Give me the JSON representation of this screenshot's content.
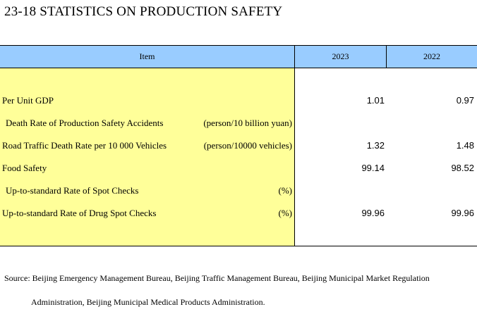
{
  "title": "23-18  STATISTICS ON PRODUCTION SAFETY",
  "table": {
    "headers": {
      "item": "Item",
      "year1": "2023",
      "year2": "2022"
    },
    "rows": [
      {
        "label": "Per Unit GDP",
        "unit": "",
        "v2023": "1.01",
        "v2022": "0.97"
      },
      {
        "label": "  Death Rate of Production Safety Accidents",
        "unit": "(person/10 billion yuan)",
        "v2023": "",
        "v2022": ""
      },
      {
        "label": "Road Traffic Death Rate per 10 000 Vehicles",
        "unit": "(person/10000 vehicles)",
        "v2023": "1.32",
        "v2022": "1.48"
      },
      {
        "label": "Food Safety",
        "unit": "",
        "v2023": "99.14",
        "v2022": "98.52"
      },
      {
        "label": "  Up-to-standard Rate of Spot Checks",
        "unit": "(%)",
        "v2023": "",
        "v2022": ""
      },
      {
        "label": "Up-to-standard Rate of Drug Spot Checks",
        "unit": "(%)",
        "v2023": "99.96",
        "v2022": "99.96"
      }
    ]
  },
  "source": {
    "line1": "Source:  Beijing Emergency Management Bureau, Beijing Traffic Management Bureau, Beijing Municipal Market Regulation",
    "line2": "Administration, Beijing Municipal Medical Products Administration."
  }
}
